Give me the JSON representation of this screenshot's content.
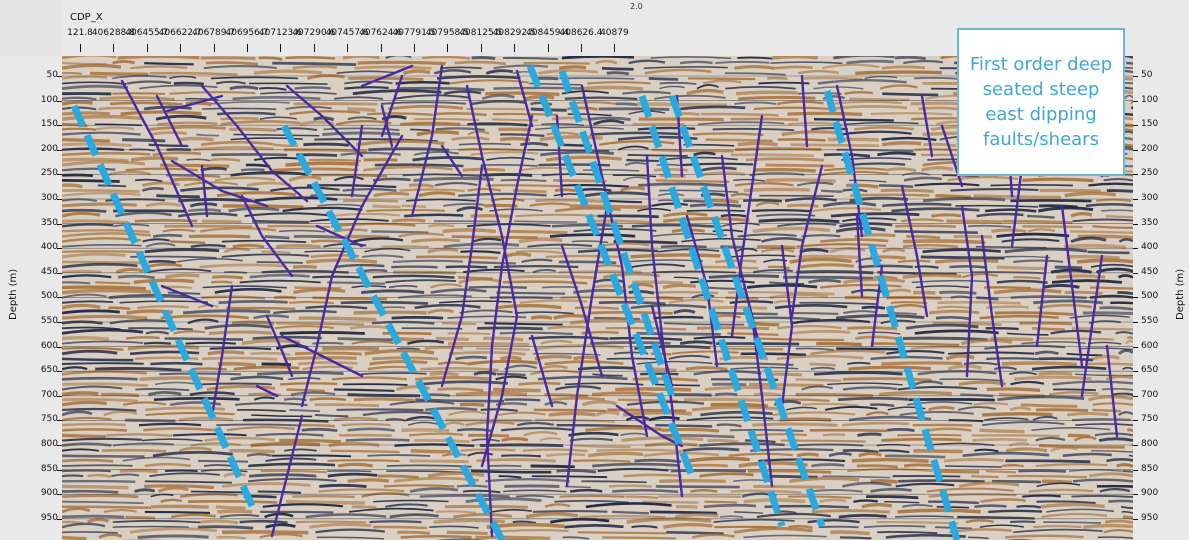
{
  "header": {
    "axis_title": "CDP_X",
    "top_marker": "2.0",
    "cdp_ticks": [
      "121.8",
      "406288.8",
      "406455.7",
      "406622.7",
      "406789.7",
      "406956.7",
      "407123.6",
      "407290.6",
      "407457.6",
      "407624.6",
      "407791.5",
      "407958.5",
      "408125.5",
      "408292.5",
      "408459.4",
      "408626.4",
      "40879"
    ]
  },
  "depth_axis": {
    "label": "Depth (m)",
    "ticks": [
      "50",
      "100",
      "150",
      "200",
      "250",
      "300",
      "350",
      "400",
      "450",
      "500",
      "550",
      "600",
      "650",
      "700",
      "750",
      "800",
      "850",
      "900",
      "950"
    ]
  },
  "callout": {
    "text": "First order deep seated steep east dipping faults/shears"
  },
  "colors": {
    "fault_purple": "#4a2aa0",
    "fault_blue_dashed": "#29a9df",
    "seismic_dark": "#1c2540",
    "seismic_brown": "#a8743e",
    "callout_text": "#3fa6d8"
  }
}
